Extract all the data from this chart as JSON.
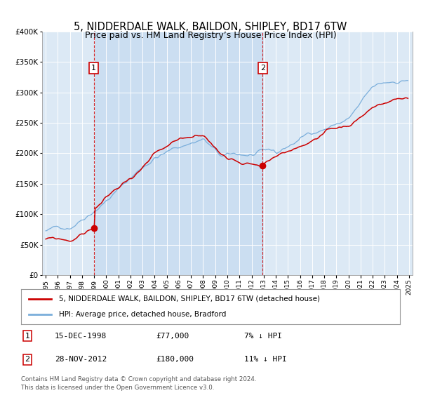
{
  "title": "5, NIDDERDALE WALK, BAILDON, SHIPLEY, BD17 6TW",
  "subtitle": "Price paid vs. HM Land Registry’s House Price Index (HPI)",
  "sale1_date": 1998.96,
  "sale1_price": 77000,
  "sale1_label": "1",
  "sale1_display": "15-DEC-1998",
  "sale1_amount": "£77,000",
  "sale1_hpi": "7% ↓ HPI",
  "sale2_date": 2012.91,
  "sale2_price": 180000,
  "sale2_label": "2",
  "sale2_display": "28-NOV-2012",
  "sale2_amount": "£180,000",
  "sale2_hpi": "11% ↓ HPI",
  "legend_line1": "5, NIDDERDALE WALK, BAILDON, SHIPLEY, BD17 6TW (detached house)",
  "legend_line2": "HPI: Average price, detached house, Bradford",
  "footer": "Contains HM Land Registry data © Crown copyright and database right 2024.\nThis data is licensed under the Open Government Licence v3.0.",
  "ylim": [
    0,
    400000
  ],
  "xlim_start": 1994.7,
  "xlim_end": 2025.3,
  "bg_color": "#dce9f5",
  "shade_color": "#c5daf0",
  "red_color": "#cc0000",
  "blue_color": "#7aaedb",
  "marker_box_color": "#cc0000",
  "grid_color": "#ffffff"
}
